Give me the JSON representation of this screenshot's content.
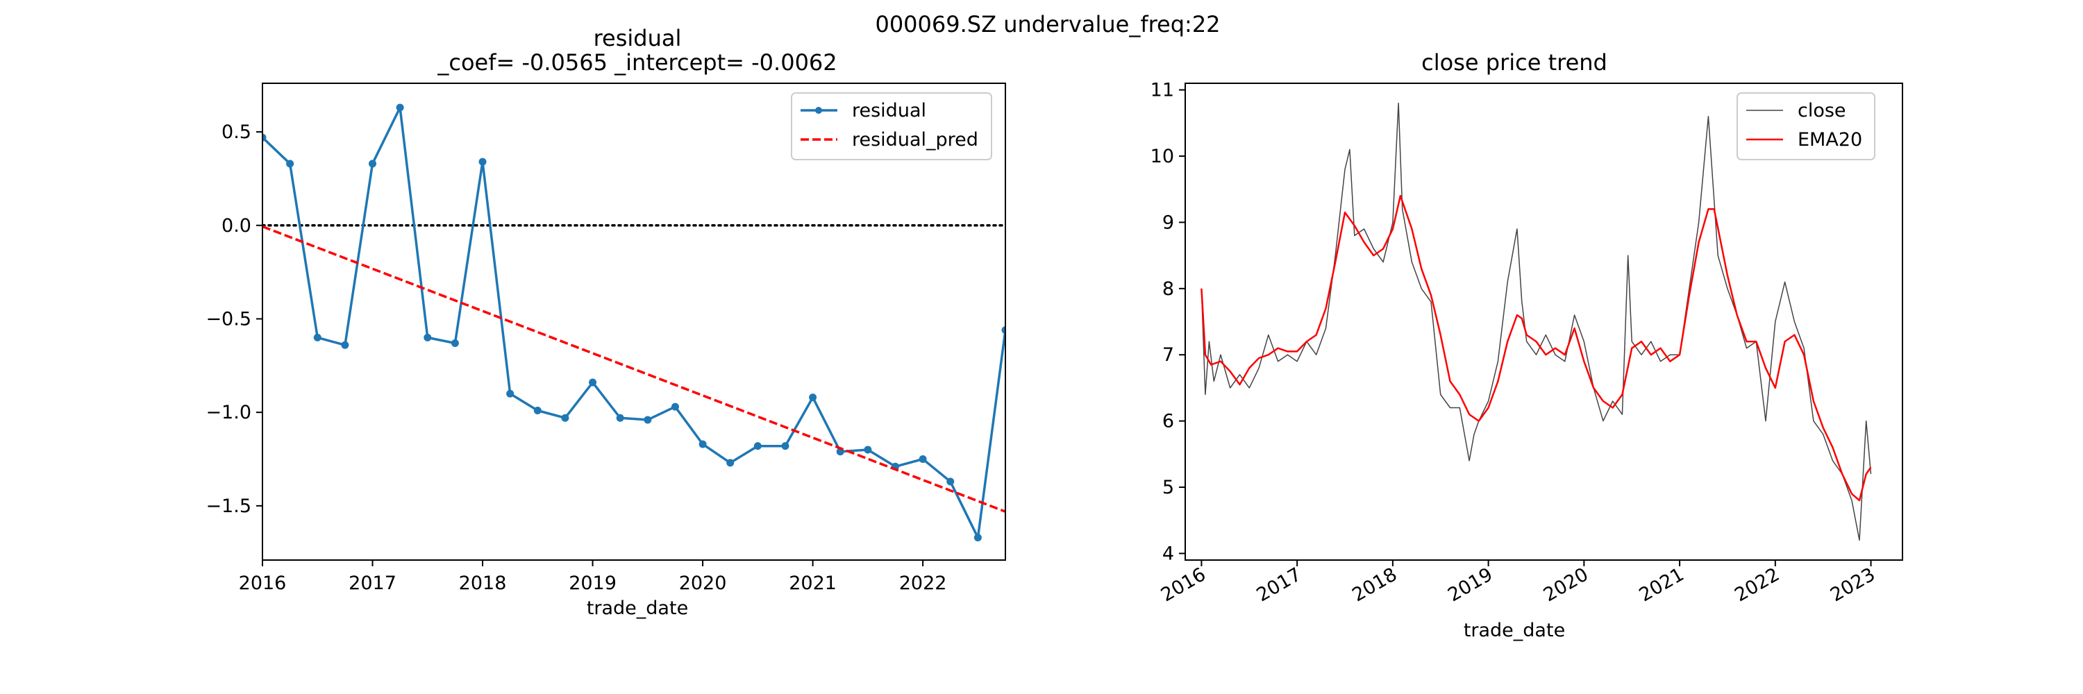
{
  "figure": {
    "suptitle": "000069.SZ undervalue_freq:22"
  },
  "colors": {
    "residual": "#1f77b4",
    "residual_pred": "#ff0000",
    "close": "#444444",
    "ema": "#ff0000",
    "zero_line": "#000000"
  },
  "chart_data": [
    {
      "type": "line",
      "title_line1": "residual",
      "title_line2": "_coef= -0.0565   _intercept= -0.0062",
      "xlabel": "trade_date",
      "ylabel": "",
      "xlim": [
        2016.0,
        2022.75
      ],
      "ylim": [
        -1.79,
        0.76
      ],
      "xticks": [
        2016,
        2017,
        2018,
        2019,
        2020,
        2021,
        2022
      ],
      "xtick_labels": [
        "2016",
        "2017",
        "2018",
        "2019",
        "2020",
        "2021",
        "2022"
      ],
      "yticks": [
        0.5,
        0.0,
        -0.5,
        -1.0,
        -1.5
      ],
      "ytick_labels": [
        "0.5",
        "0.0",
        "−0.5",
        "−1.0",
        "−1.5"
      ],
      "legend_position": "upper-right",
      "zero_line": true,
      "series": [
        {
          "name": "residual",
          "style": "solid-marker",
          "x": [
            2016.0,
            2016.25,
            2016.5,
            2016.75,
            2017.0,
            2017.25,
            2017.5,
            2017.75,
            2018.0,
            2018.25,
            2018.5,
            2018.75,
            2019.0,
            2019.25,
            2019.5,
            2019.75,
            2020.0,
            2020.25,
            2020.5,
            2020.75,
            2021.0,
            2021.25,
            2021.5,
            2021.75,
            2022.0,
            2022.25,
            2022.5,
            2022.75
          ],
          "values": [
            0.47,
            0.33,
            -0.6,
            -0.64,
            0.33,
            0.63,
            -0.6,
            -0.63,
            0.34,
            -0.9,
            -0.99,
            -1.03,
            -0.84,
            -1.03,
            -1.04,
            -0.97,
            -1.17,
            -1.27,
            -1.18,
            -1.18,
            -0.92,
            -1.21,
            -1.2,
            -1.29,
            -1.25,
            -1.37,
            -1.67,
            -0.56
          ]
        },
        {
          "name": "residual_pred",
          "style": "dashed",
          "x": [
            2016.0,
            2022.75
          ],
          "values": [
            -0.0062,
            -1.531
          ]
        }
      ]
    },
    {
      "type": "line",
      "title": "close price trend",
      "xlabel": "trade_date",
      "ylabel": "",
      "xlim": [
        2015.83,
        2023.33
      ],
      "ylim": [
        3.9,
        11.1
      ],
      "xticks": [
        2016,
        2017,
        2018,
        2019,
        2020,
        2021,
        2022,
        2023
      ],
      "xtick_labels": [
        "2016",
        "2017",
        "2018",
        "2019",
        "2020",
        "2021",
        "2022",
        "2023"
      ],
      "yticks": [
        4,
        5,
        6,
        7,
        8,
        9,
        10,
        11
      ],
      "ytick_labels": [
        "4",
        "5",
        "6",
        "7",
        "8",
        "9",
        "10",
        "11"
      ],
      "legend_position": "upper-right",
      "series": [
        {
          "name": "close",
          "style": "thin",
          "x": [
            2016.0,
            2016.04,
            2016.08,
            2016.13,
            2016.2,
            2016.3,
            2016.4,
            2016.5,
            2016.6,
            2016.7,
            2016.8,
            2016.9,
            2017.0,
            2017.1,
            2017.2,
            2017.3,
            2017.4,
            2017.5,
            2017.55,
            2017.6,
            2017.7,
            2017.8,
            2017.9,
            2018.0,
            2018.06,
            2018.1,
            2018.2,
            2018.3,
            2018.4,
            2018.5,
            2018.6,
            2018.7,
            2018.8,
            2018.85,
            2018.9,
            2019.0,
            2019.1,
            2019.2,
            2019.3,
            2019.35,
            2019.4,
            2019.5,
            2019.6,
            2019.7,
            2019.8,
            2019.9,
            2020.0,
            2020.1,
            2020.2,
            2020.3,
            2020.4,
            2020.46,
            2020.5,
            2020.6,
            2020.7,
            2020.8,
            2020.9,
            2021.0,
            2021.1,
            2021.2,
            2021.3,
            2021.4,
            2021.5,
            2021.6,
            2021.7,
            2021.8,
            2021.9,
            2022.0,
            2022.1,
            2022.2,
            2022.3,
            2022.4,
            2022.5,
            2022.6,
            2022.7,
            2022.8,
            2022.88,
            2022.95,
            2023.0
          ],
          "values": [
            8.0,
            6.4,
            7.2,
            6.6,
            7.0,
            6.5,
            6.7,
            6.5,
            6.8,
            7.3,
            6.9,
            7.0,
            6.9,
            7.2,
            7.0,
            7.4,
            8.5,
            9.8,
            10.1,
            8.8,
            8.9,
            8.6,
            8.4,
            9.0,
            10.8,
            9.2,
            8.4,
            8.0,
            7.8,
            6.4,
            6.2,
            6.2,
            5.4,
            5.8,
            6.0,
            6.3,
            6.9,
            8.1,
            8.9,
            7.8,
            7.2,
            7.0,
            7.3,
            7.0,
            6.9,
            7.6,
            7.2,
            6.5,
            6.0,
            6.3,
            6.1,
            8.5,
            7.2,
            7.0,
            7.2,
            6.9,
            7.0,
            7.0,
            8.0,
            9.0,
            10.6,
            8.5,
            8.0,
            7.6,
            7.1,
            7.2,
            6.0,
            7.5,
            8.1,
            7.5,
            7.1,
            6.0,
            5.8,
            5.4,
            5.2,
            4.8,
            4.2,
            6.0,
            5.2
          ]
        },
        {
          "name": "EMA20",
          "style": "solid",
          "x": [
            2016.0,
            2016.04,
            2016.1,
            2016.2,
            2016.3,
            2016.4,
            2016.5,
            2016.6,
            2016.7,
            2016.8,
            2016.9,
            2017.0,
            2017.1,
            2017.2,
            2017.3,
            2017.4,
            2017.5,
            2017.6,
            2017.7,
            2017.8,
            2017.9,
            2018.0,
            2018.08,
            2018.2,
            2018.3,
            2018.4,
            2018.5,
            2018.6,
            2018.7,
            2018.8,
            2018.9,
            2019.0,
            2019.1,
            2019.2,
            2019.3,
            2019.35,
            2019.4,
            2019.5,
            2019.6,
            2019.7,
            2019.8,
            2019.9,
            2020.0,
            2020.1,
            2020.2,
            2020.3,
            2020.4,
            2020.5,
            2020.6,
            2020.7,
            2020.8,
            2020.9,
            2021.0,
            2021.1,
            2021.2,
            2021.3,
            2021.36,
            2021.5,
            2021.6,
            2021.7,
            2021.8,
            2021.9,
            2022.0,
            2022.1,
            2022.2,
            2022.3,
            2022.4,
            2022.5,
            2022.6,
            2022.7,
            2022.8,
            2022.88,
            2022.95,
            2023.0
          ],
          "values": [
            8.0,
            7.0,
            6.85,
            6.9,
            6.75,
            6.55,
            6.8,
            6.95,
            7.0,
            7.1,
            7.05,
            7.05,
            7.2,
            7.3,
            7.7,
            8.4,
            9.15,
            8.95,
            8.7,
            8.5,
            8.6,
            8.9,
            9.4,
            8.9,
            8.3,
            7.9,
            7.3,
            6.6,
            6.4,
            6.1,
            6.0,
            6.2,
            6.6,
            7.2,
            7.6,
            7.55,
            7.3,
            7.2,
            7.0,
            7.1,
            7.0,
            7.4,
            6.9,
            6.5,
            6.3,
            6.2,
            6.4,
            7.1,
            7.2,
            7.0,
            7.1,
            6.9,
            7.0,
            7.9,
            8.7,
            9.2,
            9.2,
            8.2,
            7.6,
            7.2,
            7.2,
            6.8,
            6.5,
            7.2,
            7.3,
            7.0,
            6.3,
            5.9,
            5.6,
            5.2,
            4.9,
            4.8,
            5.2,
            5.3
          ]
        }
      ]
    }
  ]
}
